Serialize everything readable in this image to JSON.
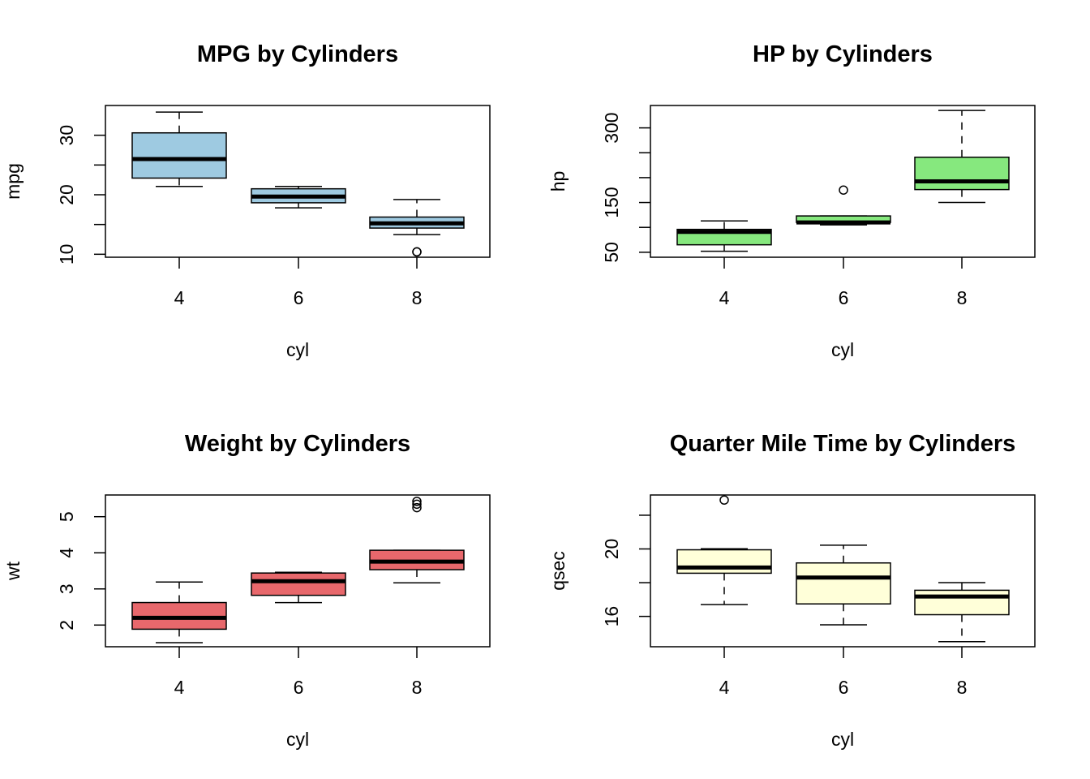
{
  "chart_data": [
    {
      "type": "boxplot",
      "title": "MPG by Cylinders",
      "xlabel": "cyl",
      "ylabel": "mpg",
      "color": "#9ecae1",
      "categories": [
        "4",
        "6",
        "8"
      ],
      "ylim": [
        9.5,
        35
      ],
      "yticks": [
        10,
        15,
        20,
        25,
        30
      ],
      "ytick_labels": [
        "10",
        "",
        "20",
        "",
        "30"
      ],
      "boxes": [
        {
          "min": 21.4,
          "q1": 22.8,
          "median": 26.0,
          "q3": 30.4,
          "max": 33.9,
          "outliers": []
        },
        {
          "min": 17.8,
          "q1": 18.65,
          "median": 19.7,
          "q3": 21.0,
          "max": 21.4,
          "outliers": []
        },
        {
          "min": 13.3,
          "q1": 14.4,
          "median": 15.2,
          "q3": 16.25,
          "max": 19.2,
          "outliers": [
            10.4,
            10.4
          ]
        }
      ]
    },
    {
      "type": "boxplot",
      "title": "HP by Cylinders",
      "xlabel": "cyl",
      "ylabel": "hp",
      "color": "#86e87e",
      "categories": [
        "4",
        "6",
        "8"
      ],
      "ylim": [
        40,
        345
      ],
      "yticks": [
        50,
        100,
        150,
        200,
        250,
        300
      ],
      "ytick_labels": [
        "50",
        "",
        "150",
        "",
        "",
        "300"
      ],
      "boxes": [
        {
          "min": 52,
          "q1": 65,
          "median": 91,
          "q3": 96,
          "max": 113,
          "outliers": []
        },
        {
          "min": 105,
          "q1": 110,
          "median": 110,
          "q3": 123,
          "max": 123,
          "outliers": [
            175
          ]
        },
        {
          "min": 150,
          "q1": 176,
          "median": 192.5,
          "q3": 241,
          "max": 335,
          "outliers": []
        }
      ]
    },
    {
      "type": "boxplot",
      "title": "Weight by Cylinders",
      "xlabel": "cyl",
      "ylabel": "wt",
      "color": "#e8686c",
      "categories": [
        "4",
        "6",
        "8"
      ],
      "ylim": [
        1.4,
        5.6
      ],
      "yticks": [
        2,
        3,
        4,
        5
      ],
      "ytick_labels": [
        "2",
        "3",
        "4",
        "5"
      ],
      "boxes": [
        {
          "min": 1.513,
          "q1": 1.885,
          "median": 2.2,
          "q3": 2.623,
          "max": 3.19,
          "outliers": []
        },
        {
          "min": 2.62,
          "q1": 2.823,
          "median": 3.215,
          "q3": 3.44,
          "max": 3.46,
          "outliers": []
        },
        {
          "min": 3.17,
          "q1": 3.533,
          "median": 3.755,
          "q3": 4.07,
          "max": 4.07,
          "outliers": [
            5.25,
            5.345,
            5.424
          ]
        }
      ]
    },
    {
      "type": "boxplot",
      "title": "Quarter Mile Time by Cylinders",
      "xlabel": "cyl",
      "ylabel": "qsec",
      "color": "#ffffd9",
      "categories": [
        "4",
        "6",
        "8"
      ],
      "ylim": [
        14.2,
        23.2
      ],
      "yticks": [
        16,
        18,
        20,
        22
      ],
      "ytick_labels": [
        "16",
        "",
        "20",
        ""
      ],
      "boxes": [
        {
          "min": 16.7,
          "q1": 18.56,
          "median": 18.9,
          "q3": 19.95,
          "max": 20.01,
          "outliers": [
            22.9
          ]
        },
        {
          "min": 15.5,
          "q1": 16.74,
          "median": 18.3,
          "q3": 19.17,
          "max": 20.22,
          "outliers": []
        },
        {
          "min": 14.5,
          "q1": 16.1,
          "median": 17.18,
          "q3": 17.55,
          "max": 18.0,
          "outliers": []
        }
      ]
    }
  ]
}
